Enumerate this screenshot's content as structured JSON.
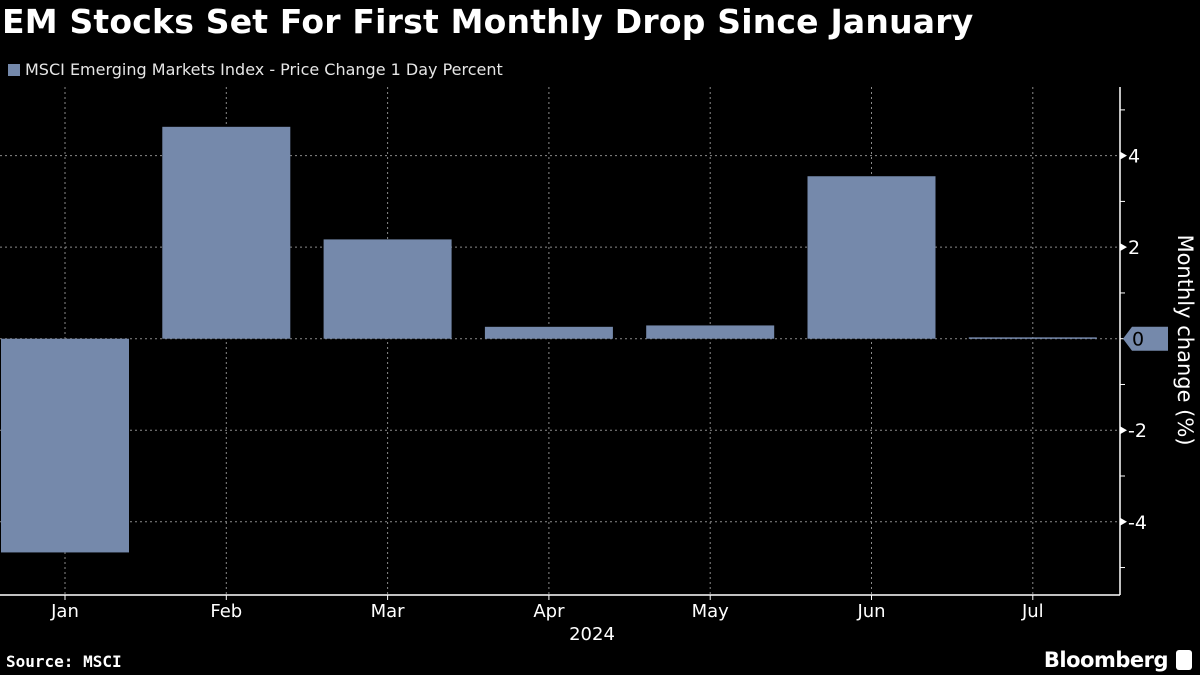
{
  "title": "EM Stocks Set For First Monthly Drop Since January",
  "source": "Source: MSCI",
  "brand": "Bloomberg",
  "chart_data": {
    "type": "bar",
    "title": "EM Stocks Set For First Monthly Drop Since January",
    "categories": [
      "Jan",
      "Feb",
      "Mar",
      "Apr",
      "May",
      "Jun",
      "Jul"
    ],
    "xlabel": "2024",
    "ylabel": "Monthly change (%)",
    "series": [
      {
        "name": "MSCI Emerging Markets Index - Price Change 1 Day Percent",
        "values": [
          -4.67,
          4.63,
          2.17,
          0.26,
          0.29,
          3.55,
          0.03
        ],
        "color": "#7589ab"
      }
    ],
    "ylim": [
      -5.6,
      5.5
    ],
    "yticks": [
      -4,
      -2,
      0,
      2,
      4
    ],
    "y_axis_side": "right",
    "grid": true,
    "legend": "top-left",
    "last_value_label": "0",
    "colors": {
      "background": "#000000",
      "bar": "#7589ab",
      "text": "#ffffff",
      "grid": "#888888"
    }
  }
}
